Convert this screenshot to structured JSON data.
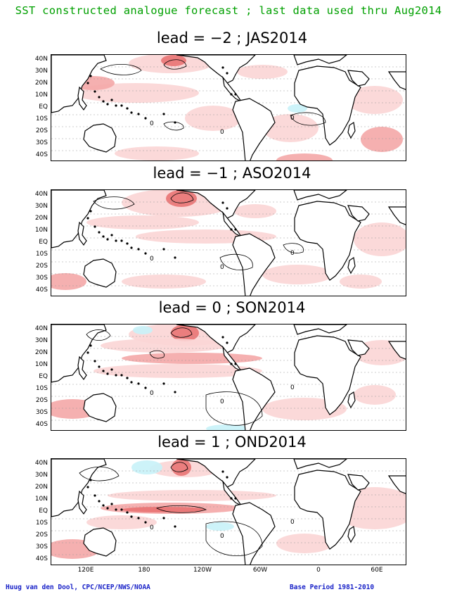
{
  "header": {
    "title": "SST constructed analogue forecast ; last data used thru Aug2014"
  },
  "panels": [
    {
      "title": "lead = −2 ; JAS2014"
    },
    {
      "title": "lead = −1 ; ASO2014"
    },
    {
      "title": "lead = 0 ; SON2014"
    },
    {
      "title": "lead = 1 ; OND2014"
    }
  ],
  "lat_labels": [
    "40N",
    "30N",
    "20N",
    "10N",
    "EQ",
    "10S",
    "20S",
    "30S",
    "40S"
  ],
  "lon_labels": [
    "120E",
    "180",
    "120W",
    "60W",
    "0",
    "60E"
  ],
  "contour_label": "0",
  "footer": {
    "credit": "Huug van den Dool, CPC/NCEP/NWS/NOAA",
    "base_period": "Base Period 1981-2010"
  },
  "colors": {
    "title": "#00a000",
    "footer": "#1a23c8",
    "warm_light": "#fbd5d5",
    "warm_mid": "#f4a7a7",
    "warm_strong": "#e97373",
    "cool_light": "#c8f2f8"
  }
}
